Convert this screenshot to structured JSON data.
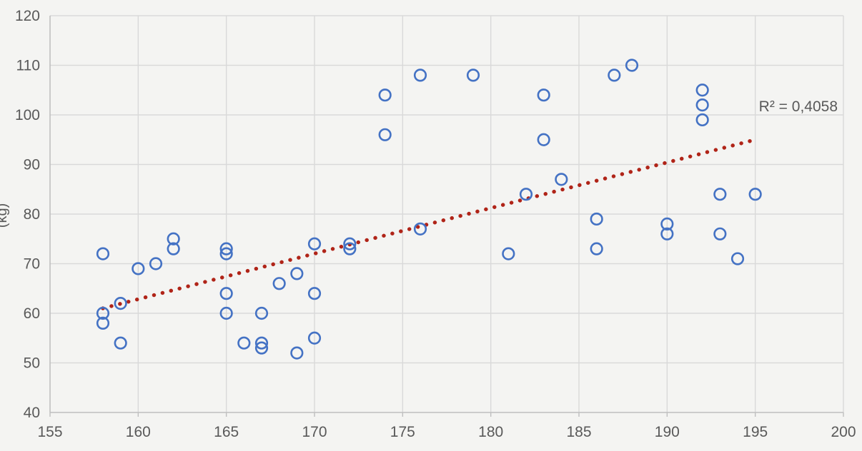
{
  "chart_data": {
    "type": "scatter",
    "title": "",
    "xlabel": "",
    "ylabel_visible_fragment": "(kg)",
    "xlim": [
      155,
      200
    ],
    "ylim": [
      40,
      120
    ],
    "x_ticks": [
      155,
      160,
      165,
      170,
      175,
      180,
      185,
      190,
      195,
      200
    ],
    "y_ticks": [
      40,
      50,
      60,
      70,
      80,
      90,
      100,
      110,
      120
    ],
    "grid": true,
    "legend_position": "none",
    "points": [
      [
        158,
        72
      ],
      [
        158,
        60
      ],
      [
        158,
        58
      ],
      [
        159,
        62
      ],
      [
        159,
        54
      ],
      [
        160,
        69
      ],
      [
        161,
        70
      ],
      [
        162,
        75
      ],
      [
        162,
        73
      ],
      [
        165,
        73
      ],
      [
        165,
        72
      ],
      [
        165,
        64
      ],
      [
        165,
        60
      ],
      [
        166,
        54
      ],
      [
        167,
        60
      ],
      [
        167,
        54
      ],
      [
        167,
        53
      ],
      [
        168,
        66
      ],
      [
        169,
        68
      ],
      [
        169,
        52
      ],
      [
        170,
        74
      ],
      [
        170,
        64
      ],
      [
        170,
        55
      ],
      [
        172,
        74
      ],
      [
        172,
        73
      ],
      [
        174,
        104
      ],
      [
        174,
        96
      ],
      [
        176,
        108
      ],
      [
        176,
        77
      ],
      [
        179,
        108
      ],
      [
        181,
        72
      ],
      [
        182,
        84
      ],
      [
        183,
        104
      ],
      [
        183,
        95
      ],
      [
        184,
        87
      ],
      [
        186,
        79
      ],
      [
        186,
        73
      ],
      [
        187,
        108
      ],
      [
        188,
        110
      ],
      [
        190,
        78
      ],
      [
        190,
        76
      ],
      [
        192,
        105
      ],
      [
        192,
        102
      ],
      [
        192,
        99
      ],
      [
        193,
        84
      ],
      [
        193,
        76
      ],
      [
        194,
        71
      ],
      [
        195,
        84
      ]
    ],
    "trendline": {
      "type": "linear",
      "style": "dotted",
      "x1": 158,
      "y1": 61,
      "x2": 195,
      "y2": 95
    },
    "annotation": {
      "r_squared_label": "R² = 0,4058"
    }
  },
  "colors": {
    "background": "#f4f4f2",
    "marker_stroke": "#4472c4",
    "trendline": "#b02418",
    "gridline": "#d9d9d9",
    "axis_line": "#bfbfbf",
    "tick_text": "#595959",
    "annotation_text": "#595959"
  }
}
